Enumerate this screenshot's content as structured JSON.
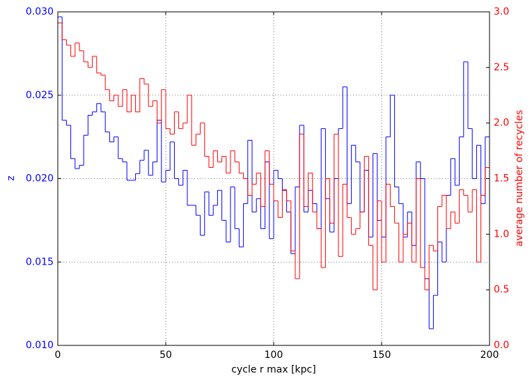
{
  "chart_data": {
    "type": "step",
    "xlabel": "cycle r max [kpc]",
    "ylabel": "z",
    "y2label": "average number of recycles",
    "xlim": [
      0,
      200
    ],
    "xticks": [
      0,
      50,
      100,
      150,
      200
    ],
    "ylim": [
      0.01,
      0.03
    ],
    "yticks": [
      {
        "value": 0.01,
        "label": "0.010"
      },
      {
        "value": 0.015,
        "label": "0.015"
      },
      {
        "value": 0.02,
        "label": "0.020"
      },
      {
        "value": 0.025,
        "label": "0.025"
      },
      {
        "value": 0.03,
        "label": "0.030"
      }
    ],
    "y2lim": [
      0,
      3
    ],
    "y2ticks": [
      {
        "value": 0,
        "label": "0.0"
      },
      {
        "value": 0.5,
        "label": "0.5"
      },
      {
        "value": 1,
        "label": "1.0"
      },
      {
        "value": 1.5,
        "label": "1.5"
      },
      {
        "value": 2,
        "label": "2.0"
      },
      {
        "value": 2.5,
        "label": "2.5"
      },
      {
        "value": 3,
        "label": "3.0"
      }
    ],
    "grid": true,
    "x": [
      0,
      2,
      4,
      6,
      8,
      10,
      12,
      14,
      16,
      18,
      20,
      22,
      24,
      26,
      28,
      30,
      32,
      34,
      36,
      38,
      40,
      42,
      44,
      46,
      48,
      50,
      52,
      54,
      56,
      58,
      60,
      62,
      64,
      66,
      68,
      70,
      72,
      74,
      76,
      78,
      80,
      82,
      84,
      86,
      88,
      90,
      92,
      94,
      96,
      98,
      100,
      102,
      104,
      106,
      108,
      110,
      112,
      114,
      116,
      118,
      120,
      122,
      124,
      126,
      128,
      130,
      132,
      134,
      136,
      138,
      140,
      142,
      144,
      146,
      148,
      150,
      152,
      154,
      156,
      158,
      160,
      162,
      164,
      166,
      168,
      170,
      172,
      174,
      176,
      178,
      180,
      182,
      184,
      186,
      188,
      190,
      192,
      194,
      196,
      198
    ],
    "series": [
      {
        "color": "#0000ff",
        "axis": "y",
        "values": [
          0.0297,
          0.0235,
          0.0232,
          0.0212,
          0.0206,
          0.0208,
          0.0226,
          0.0238,
          0.024,
          0.0245,
          0.024,
          0.0228,
          0.0222,
          0.0225,
          0.0212,
          0.021,
          0.0199,
          0.0199,
          0.0203,
          0.0211,
          0.0217,
          0.0202,
          0.021,
          0.0235,
          0.0198,
          0.0205,
          0.0222,
          0.02,
          0.0196,
          0.0205,
          0.0184,
          0.0184,
          0.0178,
          0.0166,
          0.0192,
          0.0178,
          0.0184,
          0.0193,
          0.0175,
          0.0162,
          0.0195,
          0.017,
          0.0159,
          0.0185,
          0.0223,
          0.018,
          0.0188,
          0.017,
          0.021,
          0.0164,
          0.0205,
          0.02,
          0.0193,
          0.018,
          0.0155,
          0.0195,
          0.0232,
          0.018,
          0.0193,
          0.0185,
          0.017,
          0.023,
          0.0188,
          0.0168,
          0.02,
          0.023,
          0.0255,
          0.0185,
          0.022,
          0.021,
          0.018,
          0.0205,
          0.0165,
          0.0215,
          0.0175,
          0.0165,
          0.0225,
          0.025,
          0.0195,
          0.0185,
          0.0165,
          0.018,
          0.016,
          0.021,
          0.02,
          0.014,
          0.011,
          0.013,
          0.0162,
          0.015,
          0.019,
          0.0212,
          0.0196,
          0.0225,
          0.027,
          0.023,
          0.02,
          0.022,
          0.0185,
          0.0225
        ]
      },
      {
        "color": "#ff0000",
        "axis": "y2",
        "values": [
          2.9,
          2.75,
          2.7,
          2.6,
          2.72,
          2.65,
          2.55,
          2.5,
          2.6,
          2.45,
          2.43,
          2.3,
          2.2,
          2.25,
          2.15,
          2.3,
          2.1,
          2.25,
          2.1,
          2.4,
          2.35,
          2.15,
          2.2,
          2.0,
          2.3,
          1.95,
          1.9,
          2.1,
          1.95,
          2.0,
          2.25,
          1.8,
          1.9,
          2.0,
          1.7,
          1.6,
          1.75,
          1.65,
          1.7,
          1.55,
          1.75,
          1.65,
          1.55,
          1.5,
          1.35,
          1.45,
          1.55,
          1.25,
          1.75,
          1.45,
          1.3,
          1.15,
          1.4,
          1.3,
          0.85,
          0.6,
          1.9,
          1.25,
          1.55,
          1.2,
          1.05,
          0.7,
          1.5,
          1.1,
          1.9,
          0.8,
          1.45,
          1.15,
          1.0,
          1.05,
          1.2,
          1.7,
          0.9,
          0.5,
          1.3,
          0.75,
          1.45,
          1.25,
          1.1,
          0.75,
          1.0,
          1.1,
          0.75,
          1.5,
          0.7,
          0.5,
          0.9,
          0.85,
          1.25,
          1.35,
          1.05,
          1.2,
          1.1,
          1.4,
          1.35,
          1.2,
          1.4,
          0.75,
          1.35,
          1.6
        ]
      }
    ]
  }
}
